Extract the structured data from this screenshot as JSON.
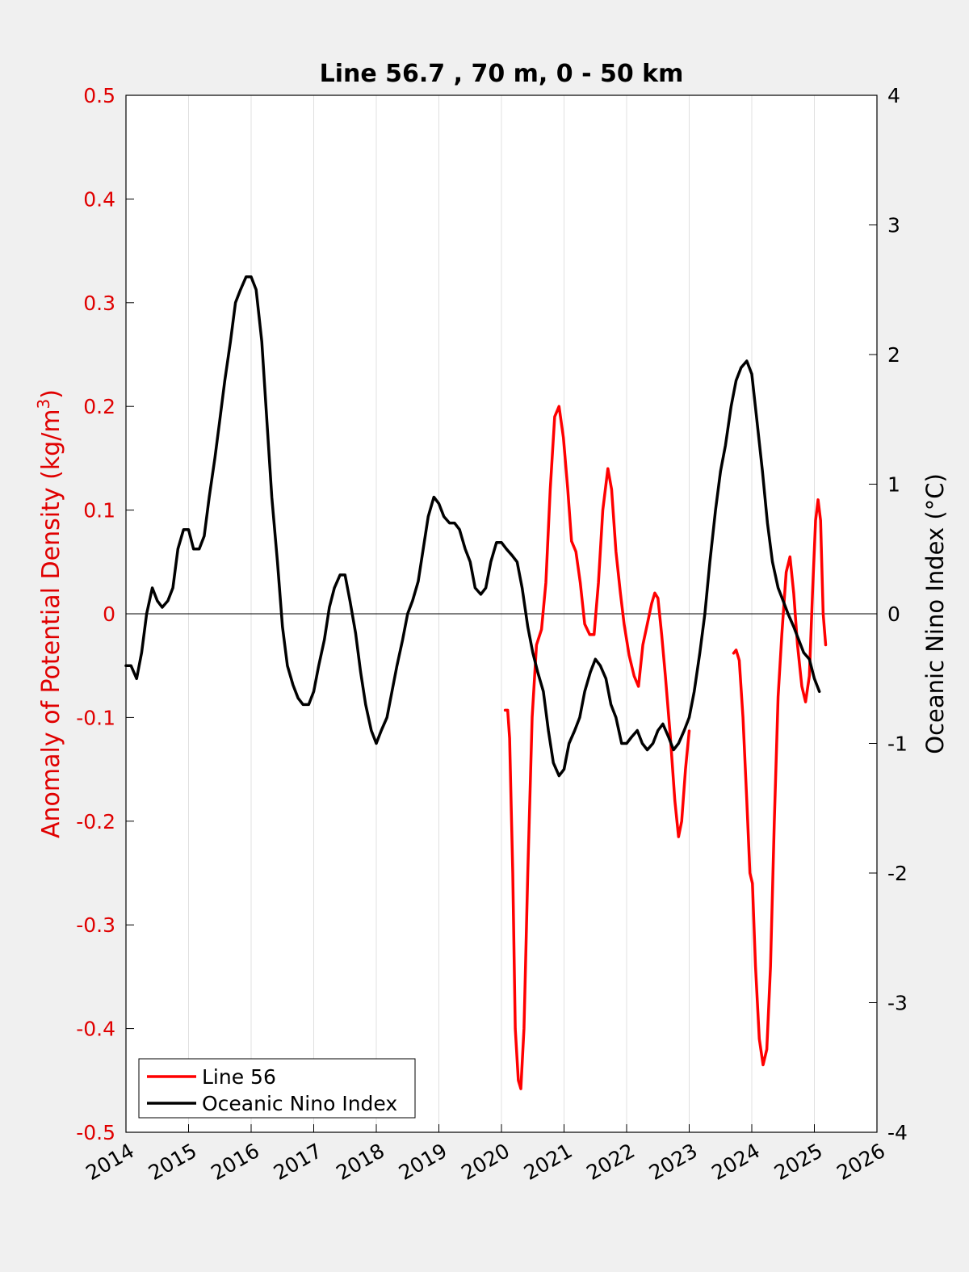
{
  "chart_data": {
    "type": "line",
    "title": "Line 56.7 , 70 m, 0 - 50 km",
    "ylabel_left": "Anomaly of Potential Density (kg/m",
    "ylabel_left_sup": "3",
    "ylabel_left_close": ")",
    "ylabel_right": "Oceanic Nino Index (°C)",
    "xlim": [
      2014,
      2026
    ],
    "ylim_left": [
      -0.5,
      0.5
    ],
    "ylim_right": [
      -4,
      4
    ],
    "xgrid": true,
    "zero_line": true,
    "legend_position": "bottom-left",
    "xticks": [
      "2014",
      "2015",
      "2016",
      "2017",
      "2018",
      "2019",
      "2020",
      "2021",
      "2022",
      "2023",
      "2024",
      "2025",
      "2026"
    ],
    "yticks_left": [
      "0.5",
      "0.4",
      "0.3",
      "0.2",
      "0.1",
      "0",
      "-0.1",
      "-0.2",
      "-0.3",
      "-0.4",
      "-0.5"
    ],
    "yticks_right": [
      "4",
      "3",
      "2",
      "1",
      "0",
      "-1",
      "-2",
      "-3",
      "-4"
    ],
    "series": [
      {
        "name": "Line 56",
        "axis": "left",
        "color": "#ff0000",
        "segments": [
          [
            [
              2020.06,
              -0.093
            ],
            [
              2020.1,
              -0.093
            ],
            [
              2020.13,
              -0.12
            ],
            [
              2020.18,
              -0.25
            ],
            [
              2020.22,
              -0.4
            ],
            [
              2020.27,
              -0.45
            ],
            [
              2020.31,
              -0.458
            ],
            [
              2020.36,
              -0.4
            ],
            [
              2020.42,
              -0.25
            ],
            [
              2020.49,
              -0.1
            ],
            [
              2020.56,
              -0.03
            ],
            [
              2020.64,
              -0.015
            ],
            [
              2020.71,
              0.03
            ],
            [
              2020.78,
              0.12
            ],
            [
              2020.85,
              0.19
            ],
            [
              2020.92,
              0.2
            ],
            [
              2020.99,
              0.17
            ],
            [
              2021.06,
              0.12
            ],
            [
              2021.12,
              0.07
            ],
            [
              2021.19,
              0.06
            ],
            [
              2021.26,
              0.03
            ],
            [
              2021.33,
              -0.01
            ],
            [
              2021.41,
              -0.02
            ],
            [
              2021.48,
              -0.02
            ],
            [
              2021.55,
              0.03
            ],
            [
              2021.62,
              0.1
            ],
            [
              2021.7,
              0.14
            ],
            [
              2021.76,
              0.12
            ],
            [
              2021.83,
              0.06
            ],
            [
              2021.9,
              0.02
            ],
            [
              2021.96,
              -0.01
            ],
            [
              2022.04,
              -0.04
            ],
            [
              2022.12,
              -0.06
            ],
            [
              2022.19,
              -0.07
            ],
            [
              2022.26,
              -0.03
            ],
            [
              2022.33,
              -0.01
            ],
            [
              2022.4,
              0.01
            ],
            [
              2022.45,
              0.02
            ],
            [
              2022.5,
              0.015
            ],
            [
              2022.56,
              -0.02
            ],
            [
              2022.62,
              -0.06
            ],
            [
              2022.7,
              -0.12
            ],
            [
              2022.77,
              -0.18
            ],
            [
              2022.83,
              -0.215
            ],
            [
              2022.88,
              -0.2
            ],
            [
              2022.94,
              -0.15
            ],
            [
              2023.0,
              -0.113
            ]
          ],
          [
            [
              2023.71,
              -0.038
            ],
            [
              2023.75,
              -0.035
            ],
            [
              2023.8,
              -0.045
            ],
            [
              2023.86,
              -0.1
            ],
            [
              2023.92,
              -0.18
            ],
            [
              2023.97,
              -0.25
            ],
            [
              2024.01,
              -0.26
            ],
            [
              2024.06,
              -0.34
            ],
            [
              2024.12,
              -0.41
            ],
            [
              2024.18,
              -0.435
            ],
            [
              2024.24,
              -0.42
            ],
            [
              2024.3,
              -0.34
            ],
            [
              2024.36,
              -0.2
            ],
            [
              2024.42,
              -0.08
            ],
            [
              2024.48,
              -0.02
            ],
            [
              2024.55,
              0.04
            ],
            [
              2024.61,
              0.055
            ],
            [
              2024.67,
              0.02
            ],
            [
              2024.73,
              -0.03
            ],
            [
              2024.8,
              -0.07
            ],
            [
              2024.86,
              -0.085
            ],
            [
              2024.92,
              -0.06
            ],
            [
              2024.97,
              0.02
            ],
            [
              2025.02,
              0.09
            ],
            [
              2025.06,
              0.11
            ],
            [
              2025.1,
              0.09
            ],
            [
              2025.14,
              0.0
            ],
            [
              2025.18,
              -0.03
            ]
          ]
        ]
      },
      {
        "name": "Oceanic Nino Index",
        "axis": "right",
        "color": "#000000",
        "segments": [
          [
            [
              2014.0,
              -0.4
            ],
            [
              2014.08,
              -0.4
            ],
            [
              2014.17,
              -0.5
            ],
            [
              2014.25,
              -0.3
            ],
            [
              2014.33,
              0.0
            ],
            [
              2014.42,
              0.2
            ],
            [
              2014.5,
              0.1
            ],
            [
              2014.58,
              0.05
            ],
            [
              2014.67,
              0.1
            ],
            [
              2014.75,
              0.2
            ],
            [
              2014.83,
              0.5
            ],
            [
              2014.92,
              0.65
            ],
            [
              2015.0,
              0.65
            ],
            [
              2015.08,
              0.5
            ],
            [
              2015.17,
              0.5
            ],
            [
              2015.25,
              0.6
            ],
            [
              2015.33,
              0.9
            ],
            [
              2015.42,
              1.2
            ],
            [
              2015.5,
              1.5
            ],
            [
              2015.58,
              1.8
            ],
            [
              2015.67,
              2.1
            ],
            [
              2015.75,
              2.4
            ],
            [
              2015.83,
              2.5
            ],
            [
              2015.92,
              2.6
            ],
            [
              2016.0,
              2.6
            ],
            [
              2016.08,
              2.5
            ],
            [
              2016.17,
              2.1
            ],
            [
              2016.25,
              1.5
            ],
            [
              2016.33,
              0.9
            ],
            [
              2016.42,
              0.4
            ],
            [
              2016.5,
              -0.1
            ],
            [
              2016.58,
              -0.4
            ],
            [
              2016.67,
              -0.55
            ],
            [
              2016.75,
              -0.65
            ],
            [
              2016.83,
              -0.7
            ],
            [
              2016.92,
              -0.7
            ],
            [
              2017.0,
              -0.6
            ],
            [
              2017.08,
              -0.4
            ],
            [
              2017.17,
              -0.2
            ],
            [
              2017.25,
              0.05
            ],
            [
              2017.33,
              0.2
            ],
            [
              2017.42,
              0.3
            ],
            [
              2017.5,
              0.3
            ],
            [
              2017.58,
              0.1
            ],
            [
              2017.67,
              -0.15
            ],
            [
              2017.75,
              -0.45
            ],
            [
              2017.83,
              -0.7
            ],
            [
              2017.92,
              -0.9
            ],
            [
              2018.0,
              -1.0
            ],
            [
              2018.08,
              -0.9
            ],
            [
              2018.17,
              -0.8
            ],
            [
              2018.25,
              -0.6
            ],
            [
              2018.33,
              -0.4
            ],
            [
              2018.42,
              -0.2
            ],
            [
              2018.5,
              0.0
            ],
            [
              2018.58,
              0.1
            ],
            [
              2018.67,
              0.25
            ],
            [
              2018.75,
              0.5
            ],
            [
              2018.83,
              0.75
            ],
            [
              2018.92,
              0.9
            ],
            [
              2019.0,
              0.85
            ],
            [
              2019.08,
              0.75
            ],
            [
              2019.17,
              0.7
            ],
            [
              2019.25,
              0.7
            ],
            [
              2019.33,
              0.65
            ],
            [
              2019.42,
              0.5
            ],
            [
              2019.5,
              0.4
            ],
            [
              2019.58,
              0.2
            ],
            [
              2019.67,
              0.15
            ],
            [
              2019.75,
              0.2
            ],
            [
              2019.83,
              0.4
            ],
            [
              2019.92,
              0.55
            ],
            [
              2020.0,
              0.55
            ],
            [
              2020.08,
              0.5
            ],
            [
              2020.17,
              0.45
            ],
            [
              2020.25,
              0.4
            ],
            [
              2020.33,
              0.2
            ],
            [
              2020.42,
              -0.1
            ],
            [
              2020.5,
              -0.3
            ],
            [
              2020.58,
              -0.45
            ],
            [
              2020.67,
              -0.6
            ],
            [
              2020.75,
              -0.9
            ],
            [
              2020.83,
              -1.15
            ],
            [
              2020.92,
              -1.25
            ],
            [
              2021.0,
              -1.2
            ],
            [
              2021.08,
              -1.0
            ],
            [
              2021.17,
              -0.9
            ],
            [
              2021.25,
              -0.8
            ],
            [
              2021.33,
              -0.6
            ],
            [
              2021.42,
              -0.45
            ],
            [
              2021.5,
              -0.35
            ],
            [
              2021.58,
              -0.4
            ],
            [
              2021.67,
              -0.5
            ],
            [
              2021.75,
              -0.7
            ],
            [
              2021.83,
              -0.8
            ],
            [
              2021.92,
              -1.0
            ],
            [
              2022.0,
              -1.0
            ],
            [
              2022.08,
              -0.95
            ],
            [
              2022.17,
              -0.9
            ],
            [
              2022.25,
              -1.0
            ],
            [
              2022.33,
              -1.05
            ],
            [
              2022.42,
              -1.0
            ],
            [
              2022.5,
              -0.9
            ],
            [
              2022.58,
              -0.85
            ],
            [
              2022.67,
              -0.95
            ],
            [
              2022.75,
              -1.05
            ],
            [
              2022.83,
              -1.0
            ],
            [
              2022.92,
              -0.9
            ],
            [
              2023.0,
              -0.8
            ],
            [
              2023.08,
              -0.6
            ],
            [
              2023.17,
              -0.3
            ],
            [
              2023.25,
              0.0
            ],
            [
              2023.33,
              0.4
            ],
            [
              2023.42,
              0.8
            ],
            [
              2023.5,
              1.1
            ],
            [
              2023.58,
              1.3
            ],
            [
              2023.67,
              1.6
            ],
            [
              2023.75,
              1.8
            ],
            [
              2023.83,
              1.9
            ],
            [
              2023.92,
              1.95
            ],
            [
              2024.0,
              1.85
            ],
            [
              2024.08,
              1.5
            ],
            [
              2024.17,
              1.1
            ],
            [
              2024.25,
              0.7
            ],
            [
              2024.33,
              0.4
            ],
            [
              2024.42,
              0.2
            ],
            [
              2024.5,
              0.1
            ],
            [
              2024.58,
              0.0
            ],
            [
              2024.67,
              -0.1
            ],
            [
              2024.75,
              -0.2
            ],
            [
              2024.83,
              -0.3
            ],
            [
              2024.92,
              -0.35
            ],
            [
              2025.0,
              -0.5
            ],
            [
              2025.08,
              -0.6
            ]
          ]
        ]
      }
    ]
  }
}
